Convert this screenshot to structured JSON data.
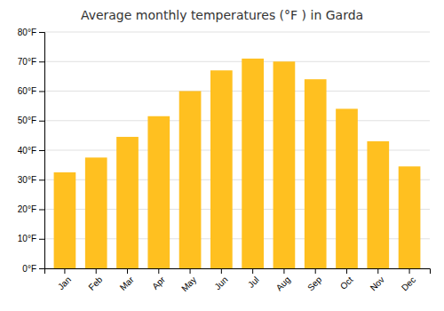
{
  "chart_data": {
    "type": "bar",
    "title": "Average monthly temperatures (°F ) in Garda",
    "categories": [
      "Jan",
      "Feb",
      "Mar",
      "Apr",
      "May",
      "Jun",
      "Jul",
      "Aug",
      "Sep",
      "Oct",
      "Nov",
      "Dec"
    ],
    "values": [
      32.5,
      37.5,
      44.5,
      51.5,
      60.0,
      67.0,
      71.0,
      70.0,
      64.0,
      54.0,
      43.0,
      34.5
    ],
    "color": "#FFC020",
    "ylim": [
      0,
      80
    ],
    "yticks": [
      {
        "value": 0,
        "label": "0°F"
      },
      {
        "value": 10,
        "label": "10°F"
      },
      {
        "value": 20,
        "label": "20°F"
      },
      {
        "value": 30,
        "label": "30°F"
      },
      {
        "value": 40,
        "label": "40°F"
      },
      {
        "value": 50,
        "label": "50°F"
      },
      {
        "value": 60,
        "label": "60°F"
      },
      {
        "value": 70,
        "label": "70°F"
      },
      {
        "value": 80,
        "label": "80°F"
      }
    ],
    "grid": true
  }
}
